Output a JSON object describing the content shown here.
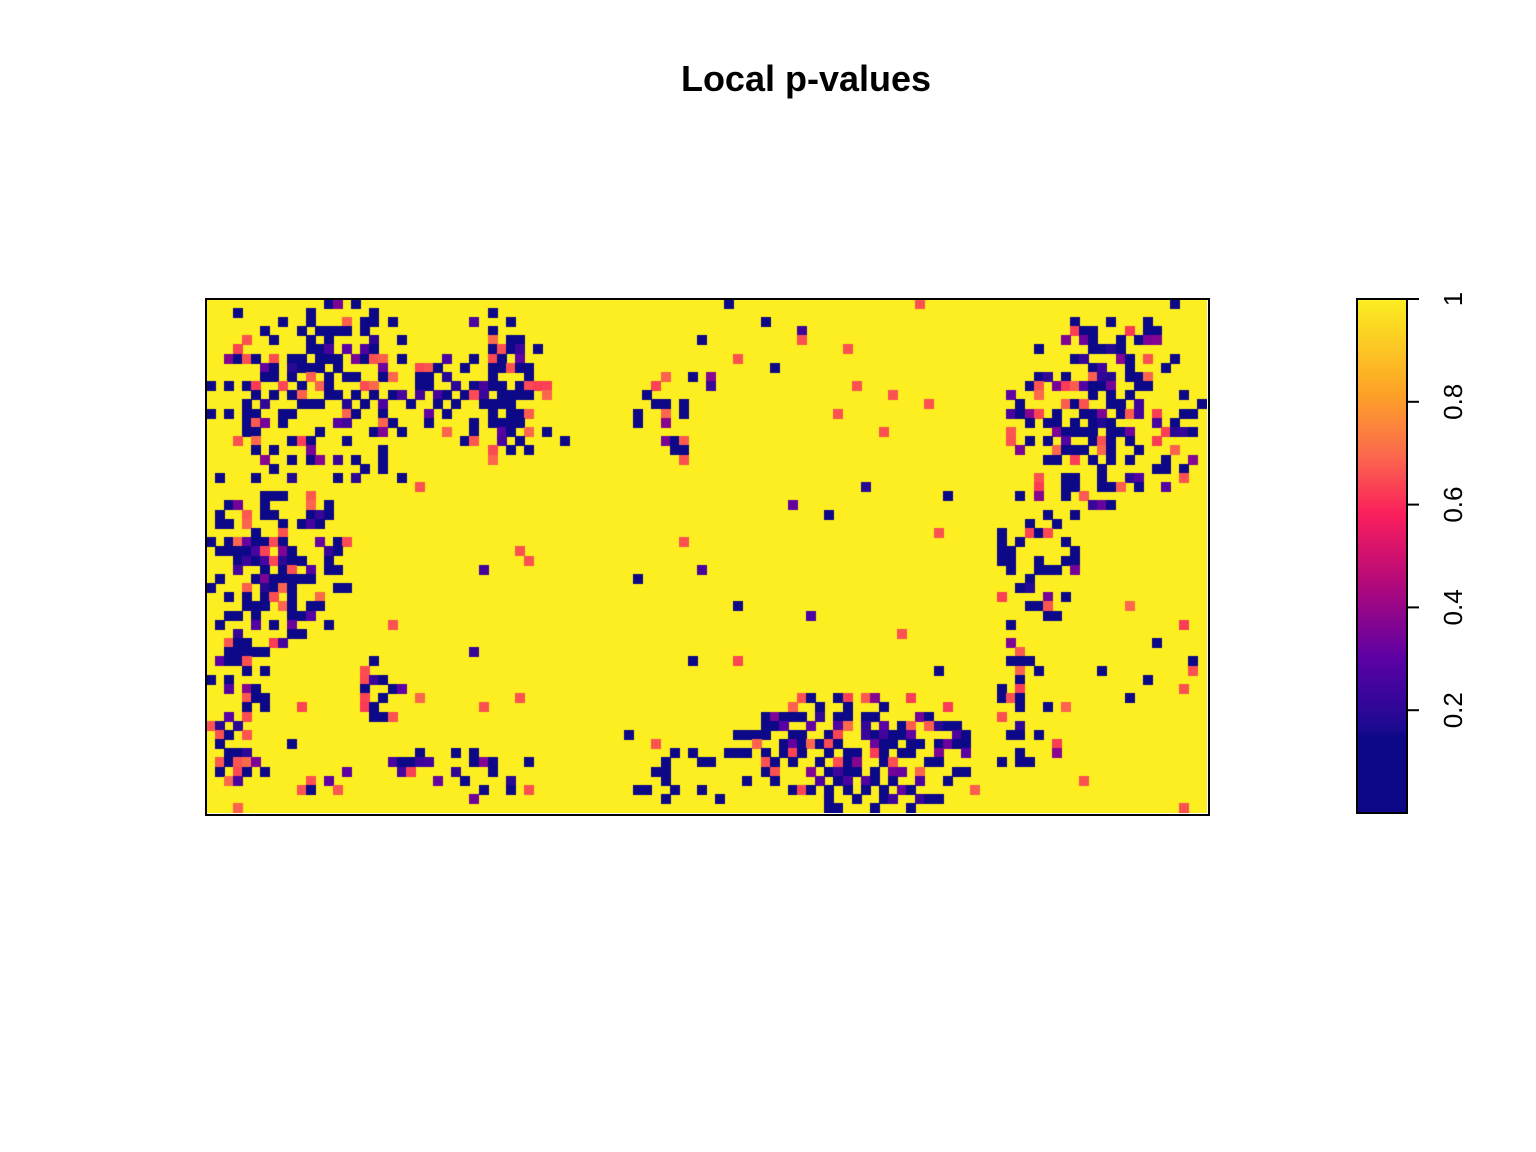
{
  "chart_data": {
    "type": "heatmap",
    "title": "Local p-values",
    "xlabel": "",
    "ylabel": "",
    "value_range": [
      0,
      1
    ],
    "grid_size": {
      "cols": 110,
      "rows": 56
    },
    "colormap": "plasma",
    "colormap_stops": [
      {
        "value": 0.0,
        "color": "#0d0887"
      },
      {
        "value": 0.15,
        "color": "#0d0887"
      },
      {
        "value": 0.16,
        "color": "#1a0a90"
      },
      {
        "value": 0.3,
        "color": "#5b01a5"
      },
      {
        "value": 0.45,
        "color": "#b5097a"
      },
      {
        "value": 0.58,
        "color": "#fa1f5c"
      },
      {
        "value": 0.7,
        "color": "#fb6b4c"
      },
      {
        "value": 0.82,
        "color": "#fca426"
      },
      {
        "value": 1.0,
        "color": "#fcee21"
      }
    ],
    "legend": {
      "placement": "right",
      "ticks": [
        {
          "value": 0.2,
          "label": "0.2"
        },
        {
          "value": 0.4,
          "label": "0.4"
        },
        {
          "value": 0.6,
          "label": "0.6"
        },
        {
          "value": 0.8,
          "label": "0.8"
        },
        {
          "value": 1.0,
          "label": "1"
        }
      ]
    },
    "low_pvalue_regions": [
      {
        "name": "upper-left cluster",
        "cx": 0.12,
        "cy": 0.18,
        "rx": 0.12,
        "ry": 0.18,
        "density": 0.55
      },
      {
        "name": "left-middle cluster",
        "cx": 0.07,
        "cy": 0.52,
        "rx": 0.08,
        "ry": 0.16,
        "density": 0.55
      },
      {
        "name": "left column",
        "cx": 0.03,
        "cy": 0.75,
        "rx": 0.035,
        "ry": 0.25,
        "density": 0.4
      },
      {
        "name": "top cluster",
        "cx": 0.29,
        "cy": 0.18,
        "rx": 0.06,
        "ry": 0.15,
        "density": 0.6
      },
      {
        "name": "small top cluster",
        "cx": 0.46,
        "cy": 0.23,
        "rx": 0.03,
        "ry": 0.08,
        "density": 0.45
      },
      {
        "name": "upper-right cluster",
        "cx": 0.9,
        "cy": 0.22,
        "rx": 0.1,
        "ry": 0.2,
        "density": 0.5
      },
      {
        "name": "right-middle cluster",
        "cx": 0.83,
        "cy": 0.52,
        "rx": 0.04,
        "ry": 0.15,
        "density": 0.45
      },
      {
        "name": "right lower cluster",
        "cx": 0.82,
        "cy": 0.82,
        "rx": 0.04,
        "ry": 0.14,
        "density": 0.4
      },
      {
        "name": "bottom cluster",
        "cx": 0.65,
        "cy": 0.88,
        "rx": 0.13,
        "ry": 0.12,
        "density": 0.6
      },
      {
        "name": "bottom-left blob",
        "cx": 0.17,
        "cy": 0.77,
        "rx": 0.03,
        "ry": 0.06,
        "density": 0.6
      },
      {
        "name": "bottom-left scatter",
        "cx": 0.2,
        "cy": 0.93,
        "rx": 0.15,
        "ry": 0.06,
        "density": 0.25
      },
      {
        "name": "bottom-middle scatter",
        "cx": 0.47,
        "cy": 0.93,
        "rx": 0.05,
        "ry": 0.06,
        "density": 0.3
      }
    ]
  }
}
